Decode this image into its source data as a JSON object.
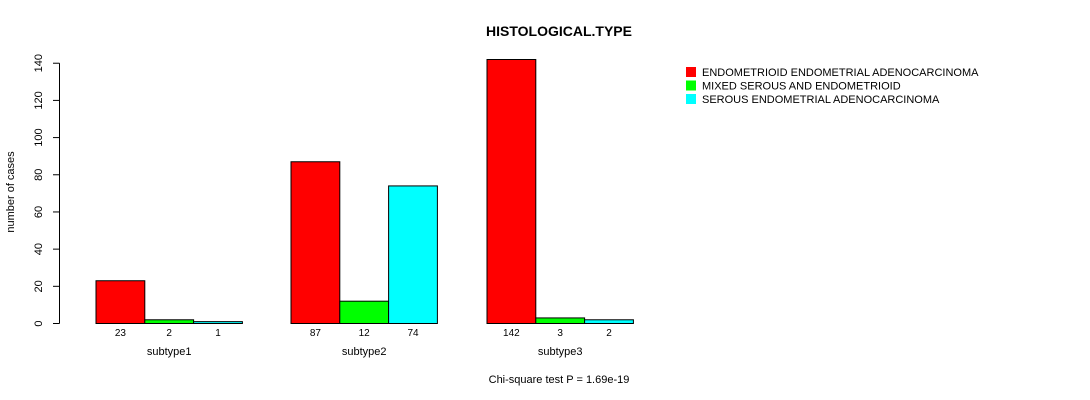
{
  "chart_data": {
    "type": "bar",
    "title": "HISTOLOGICAL.TYPE",
    "xlabel": "",
    "ylabel": "number of cases",
    "footnote": "Chi-square test P = 1.69e-19",
    "categories": [
      "subtype1",
      "subtype2",
      "subtype3"
    ],
    "series": [
      {
        "name": "ENDOMETRIOID ENDOMETRIAL ADENOCARCINOMA",
        "color": "#ff0000",
        "values": [
          23,
          87,
          142
        ]
      },
      {
        "name": "MIXED SEROUS AND ENDOMETRIOID",
        "color": "#00ff00",
        "values": [
          2,
          12,
          3
        ]
      },
      {
        "name": "SEROUS ENDOMETRIAL ADENOCARCINOMA",
        "color": "#00ffff",
        "values": [
          1,
          74,
          2
        ]
      }
    ],
    "ylim": [
      0,
      142
    ],
    "yticks": [
      0,
      20,
      40,
      60,
      80,
      100,
      120,
      140
    ],
    "grid": false,
    "legend_position": "top-right"
  }
}
